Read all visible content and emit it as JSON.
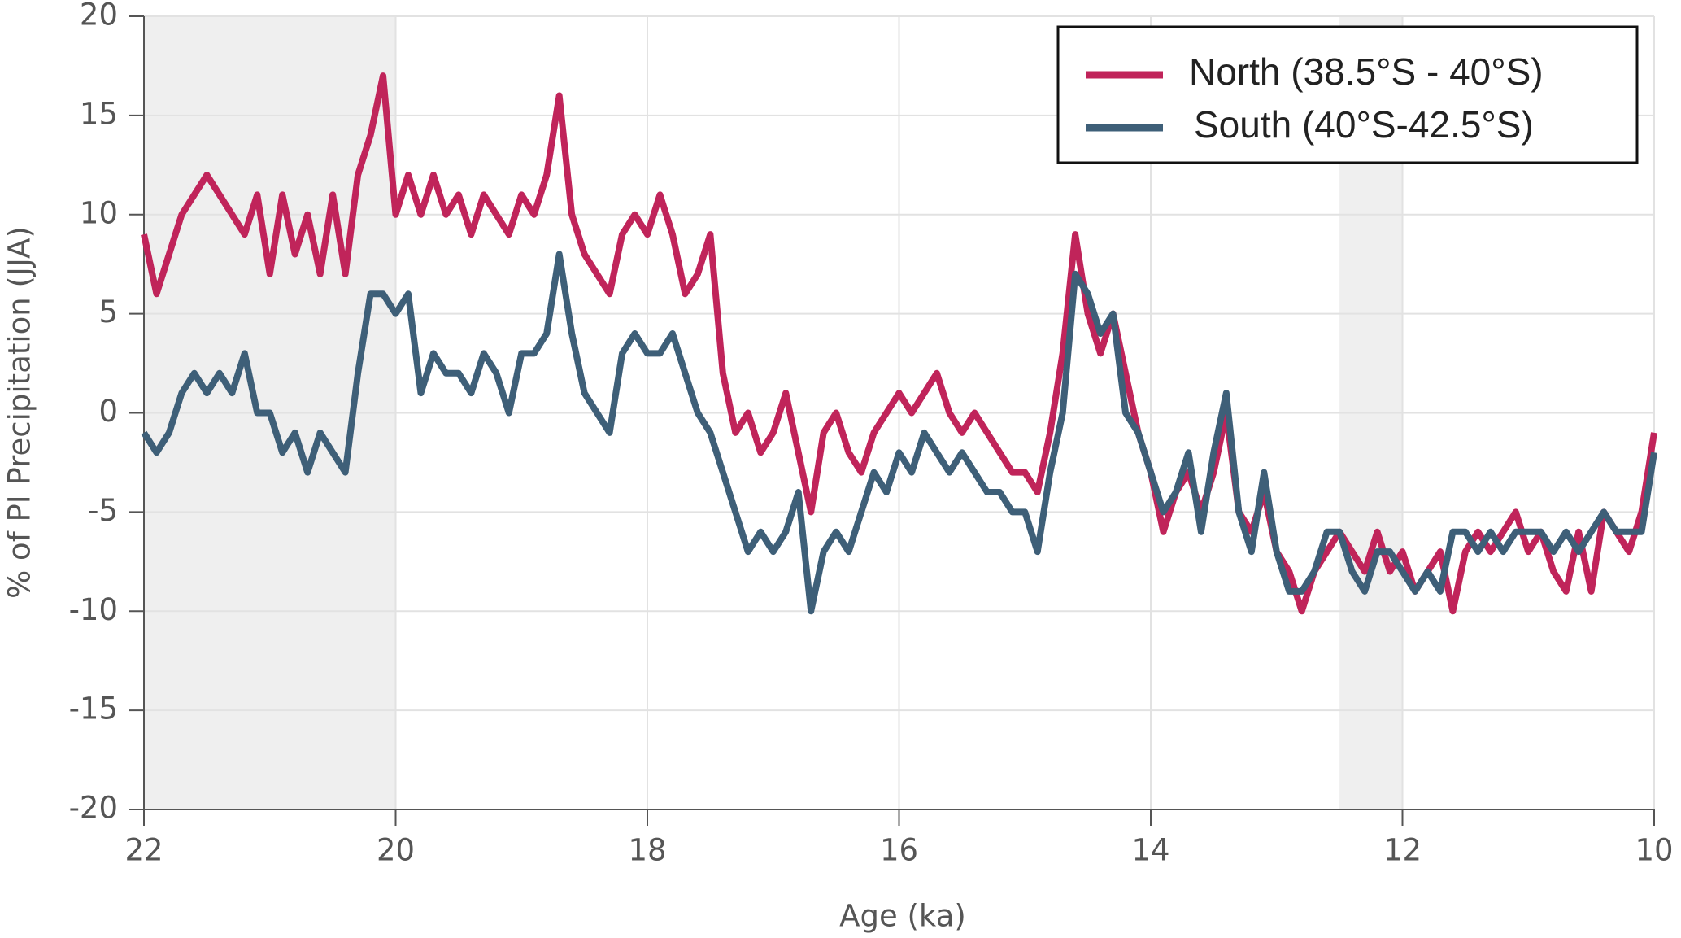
{
  "chart_data": {
    "type": "line",
    "xlabel": "Age (ka)",
    "ylabel": "% of PI Precipitation (JJA)",
    "x": [
      22,
      21.9,
      21.8,
      21.7,
      21.6,
      21.5,
      21.4,
      21.3,
      21.2,
      21.1,
      21,
      20.9,
      20.8,
      20.7,
      20.6,
      20.5,
      20.4,
      20.3,
      20.2,
      20.1,
      20,
      19.9,
      19.8,
      19.7,
      19.6,
      19.5,
      19.4,
      19.3,
      19.2,
      19.1,
      19,
      18.9,
      18.8,
      18.7,
      18.6,
      18.5,
      18.4,
      18.3,
      18.2,
      18.1,
      18,
      17.9,
      17.8,
      17.7,
      17.6,
      17.5,
      17.4,
      17.3,
      17.2,
      17.1,
      17,
      16.9,
      16.8,
      16.7,
      16.6,
      16.5,
      16.4,
      16.3,
      16.2,
      16.1,
      16,
      15.9,
      15.8,
      15.7,
      15.6,
      15.5,
      15.4,
      15.3,
      15.2,
      15.1,
      15,
      14.9,
      14.8,
      14.7,
      14.6,
      14.5,
      14.4,
      14.3,
      14.2,
      14.1,
      14,
      13.9,
      13.8,
      13.7,
      13.6,
      13.5,
      13.4,
      13.3,
      13.2,
      13.1,
      13,
      12.9,
      12.8,
      12.7,
      12.6,
      12.5,
      12.4,
      12.3,
      12.2,
      12.1,
      12,
      11.9,
      11.8,
      11.7,
      11.6,
      11.5,
      11.4,
      11.3,
      11.2,
      11.1,
      11,
      10.9,
      10.8,
      10.7,
      10.6,
      10.5,
      10.4,
      10.3,
      10.2,
      10.1,
      10
    ],
    "series": [
      {
        "name": "North (38.5°S - 40°S)",
        "color": "#c0245a",
        "values": [
          9,
          6,
          8,
          10,
          11,
          12,
          11,
          10,
          9,
          11,
          7,
          11,
          8,
          10,
          7,
          11,
          7,
          12,
          14,
          17,
          10,
          12,
          10,
          12,
          10,
          11,
          9,
          11,
          10,
          9,
          11,
          10,
          12,
          16,
          10,
          8,
          7,
          6,
          9,
          10,
          9,
          11,
          9,
          6,
          7,
          9,
          2,
          -1,
          0,
          -2,
          -1,
          1,
          -2,
          -5,
          -1,
          0,
          -2,
          -3,
          -1,
          0,
          1,
          0,
          1,
          2,
          0,
          -1,
          0,
          -1,
          -2,
          -3,
          -3,
          -4,
          -1,
          3,
          9,
          5,
          3,
          5,
          2,
          -1,
          -3,
          -6,
          -4,
          -3,
          -5,
          -3,
          0,
          -5,
          -6,
          -4,
          -7,
          -8,
          -10,
          -8,
          -7,
          -6,
          -7,
          -8,
          -6,
          -8,
          -7,
          -9,
          -8,
          -7,
          -10,
          -7,
          -6,
          -7,
          -6,
          -5,
          -7,
          -6,
          -8,
          -9,
          -6,
          -9,
          -5,
          -6,
          -7,
          -5,
          -1
        ]
      },
      {
        "name": "South (40°S-42.5°S)",
        "color": "#3e5f78",
        "values": [
          -1,
          -2,
          -1,
          1,
          2,
          1,
          2,
          1,
          3,
          0,
          0,
          -2,
          -1,
          -3,
          -1,
          -2,
          -3,
          2,
          6,
          6,
          5,
          6,
          1,
          3,
          2,
          2,
          1,
          3,
          2,
          0,
          3,
          3,
          4,
          8,
          4,
          1,
          0,
          -1,
          3,
          4,
          3,
          3,
          4,
          2,
          0,
          -1,
          -3,
          -5,
          -7,
          -6,
          -7,
          -6,
          -4,
          -10,
          -7,
          -6,
          -7,
          -5,
          -3,
          -4,
          -2,
          -3,
          -1,
          -2,
          -3,
          -2,
          -3,
          -4,
          -4,
          -5,
          -5,
          -7,
          -3,
          0,
          7,
          6,
          4,
          5,
          0,
          -1,
          -3,
          -5,
          -4,
          -2,
          -6,
          -2,
          1,
          -5,
          -7,
          -3,
          -7,
          -9,
          -9,
          -8,
          -6,
          -6,
          -8,
          -9,
          -7,
          -7,
          -8,
          -9,
          -8,
          -9,
          -6,
          -6,
          -7,
          -6,
          -7,
          -6,
          -6,
          -6,
          -7,
          -6,
          -7,
          -6,
          -5,
          -6,
          -6,
          -6,
          -2
        ]
      }
    ],
    "xlim": [
      22,
      10
    ],
    "xticks": [
      22,
      20,
      18,
      16,
      14,
      12,
      10
    ],
    "ylim": [
      -20,
      20
    ],
    "yticks": [
      -20,
      -15,
      -10,
      -5,
      0,
      5,
      10,
      15,
      20
    ],
    "grid": true,
    "legend": "upper right",
    "shaded_regions": [
      [
        22,
        20
      ],
      [
        12.5,
        12
      ]
    ]
  }
}
